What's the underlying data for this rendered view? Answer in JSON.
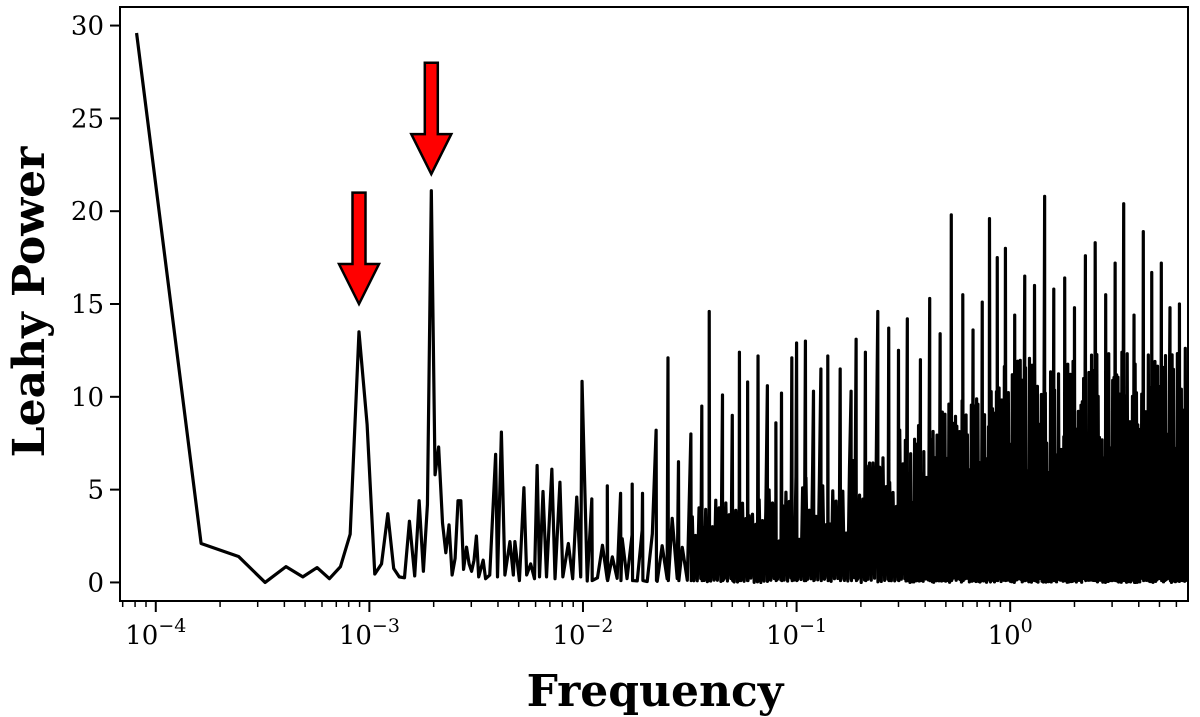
{
  "chart_data": {
    "type": "line",
    "title": "",
    "xlabel": "Frequency",
    "ylabel": "Leahy Power",
    "xscale": "log",
    "xlim": [
      6.8e-05,
      6.8
    ],
    "ylim": [
      -1,
      31
    ],
    "grid": false,
    "x_ticks": [
      {
        "value": 0.0001,
        "base": "10",
        "exp": "−4"
      },
      {
        "value": 0.001,
        "base": "10",
        "exp": "−3"
      },
      {
        "value": 0.01,
        "base": "10",
        "exp": "−2"
      },
      {
        "value": 0.1,
        "base": "10",
        "exp": "−1"
      },
      {
        "value": 1,
        "base": "10",
        "exp": "0"
      }
    ],
    "y_ticks": [
      {
        "value": 0,
        "label": "0"
      },
      {
        "value": 5,
        "label": "5"
      },
      {
        "value": 10,
        "label": "10"
      },
      {
        "value": 15,
        "label": "15"
      },
      {
        "value": 20,
        "label": "20"
      },
      {
        "value": 25,
        "label": "25"
      },
      {
        "value": 30,
        "label": "30"
      }
    ],
    "series": [
      {
        "color": "#000000",
        "values_low_freq": [
          [
            8.13e-05,
            29.6
          ],
          [
            0.000163,
            2.1
          ],
          [
            0.000244,
            1.4
          ],
          [
            0.000325,
            0.0
          ],
          [
            0.000407,
            0.85
          ],
          [
            0.000488,
            0.3
          ],
          [
            0.000569,
            0.8
          ],
          [
            0.00065,
            0.2
          ],
          [
            0.000732,
            0.85
          ],
          [
            0.000813,
            2.6
          ],
          [
            0.000894,
            13.5
          ],
          [
            0.000976,
            8.5
          ],
          [
            0.00106,
            0.45
          ],
          [
            0.00114,
            1.0
          ],
          [
            0.00122,
            3.7
          ],
          [
            0.0013,
            0.75
          ],
          [
            0.00138,
            0.3
          ],
          [
            0.00146,
            0.25
          ],
          [
            0.00154,
            3.3
          ],
          [
            0.00163,
            0.35
          ],
          [
            0.00171,
            4.4
          ],
          [
            0.00179,
            0.6
          ],
          [
            0.00187,
            4.2
          ],
          [
            0.00195,
            21.1
          ],
          [
            0.00203,
            5.8
          ],
          [
            0.00211,
            7.3
          ],
          [
            0.0022,
            3.2
          ],
          [
            0.00228,
            1.6
          ],
          [
            0.00236,
            3.1
          ],
          [
            0.00244,
            0.4
          ],
          [
            0.00252,
            1.3
          ],
          [
            0.0026,
            4.4
          ],
          [
            0.00268,
            4.4
          ],
          [
            0.00276,
            0.7
          ],
          [
            0.00285,
            1.9
          ],
          [
            0.00293,
            1.0
          ],
          [
            0.00301,
            0.6
          ],
          [
            0.00309,
            1.2
          ],
          [
            0.00317,
            2.5
          ],
          [
            0.00325,
            0.3
          ],
          [
            0.00341,
            1.2
          ],
          [
            0.0035,
            0.2
          ],
          [
            0.00366,
            0.4
          ],
          [
            0.0039,
            6.9
          ],
          [
            0.00398,
            0.3
          ],
          [
            0.00415,
            8.1
          ],
          [
            0.00431,
            0.4
          ],
          [
            0.00455,
            2.2
          ],
          [
            0.00472,
            0.4
          ],
          [
            0.0048,
            2.2
          ],
          [
            0.00504,
            0.1
          ],
          [
            0.00529,
            5.1
          ],
          [
            0.00545,
            0.4
          ],
          [
            0.00569,
            1.0
          ],
          [
            0.00593,
            0.2
          ],
          [
            0.0061,
            6.3
          ],
          [
            0.00626,
            0.3
          ],
          [
            0.0065,
            4.9
          ],
          [
            0.00675,
            0.3
          ],
          [
            0.00715,
            6.1
          ],
          [
            0.0074,
            0.2
          ],
          [
            0.0078,
            5.4
          ],
          [
            0.00805,
            0.3
          ],
          [
            0.00854,
            2.1
          ],
          [
            0.00895,
            0.2
          ],
          [
            0.00935,
            4.6
          ],
          [
            0.00976,
            0.3
          ]
        ],
        "peaks_high_freq": [
          [
            0.011,
            4.5
          ],
          [
            0.013,
            5.2
          ],
          [
            0.015,
            4.8
          ],
          [
            0.017,
            5.3
          ],
          [
            0.019,
            4.8
          ],
          [
            0.022,
            8.2
          ],
          [
            0.025,
            12.1
          ],
          [
            0.028,
            6.5
          ],
          [
            0.032,
            8.0
          ],
          [
            0.036,
            9.5
          ],
          [
            0.039,
            14.6
          ],
          [
            0.045,
            10.1
          ],
          [
            0.05,
            9.0
          ],
          [
            0.054,
            12.4
          ],
          [
            0.059,
            10.8
          ],
          [
            0.066,
            12.2
          ],
          [
            0.073,
            10.6
          ],
          [
            0.08,
            8.6
          ],
          [
            0.085,
            10.2
          ],
          [
            0.095,
            12.1
          ],
          [
            0.1,
            12.9
          ],
          [
            0.11,
            13.0
          ],
          [
            0.12,
            10.3
          ],
          [
            0.13,
            11.5
          ],
          [
            0.14,
            12.2
          ],
          [
            0.16,
            11.5
          ],
          [
            0.18,
            10.3
          ],
          [
            0.19,
            13.1
          ],
          [
            0.21,
            12.4
          ],
          [
            0.24,
            14.6
          ],
          [
            0.27,
            13.7
          ],
          [
            0.3,
            12.5
          ],
          [
            0.33,
            14.2
          ],
          [
            0.38,
            12.0
          ],
          [
            0.42,
            15.3
          ],
          [
            0.47,
            13.4
          ],
          [
            0.53,
            19.8
          ],
          [
            0.6,
            15.5
          ],
          [
            0.67,
            13.6
          ],
          [
            0.74,
            15.1
          ],
          [
            0.8,
            19.6
          ],
          [
            0.87,
            17.5
          ],
          [
            0.95,
            18.0
          ],
          [
            1.05,
            14.4
          ],
          [
            1.17,
            16.5
          ],
          [
            1.3,
            16.0
          ],
          [
            1.45,
            20.8
          ],
          [
            1.6,
            15.8
          ],
          [
            1.8,
            16.4
          ],
          [
            2.0,
            14.8
          ],
          [
            2.25,
            17.6
          ],
          [
            2.5,
            18.3
          ],
          [
            2.8,
            15.5
          ],
          [
            3.1,
            17.2
          ],
          [
            3.4,
            20.4
          ],
          [
            3.8,
            14.4
          ],
          [
            4.2,
            18.9
          ],
          [
            4.6,
            16.7
          ],
          [
            5.1,
            17.2
          ],
          [
            5.6,
            14.8
          ],
          [
            6.2,
            15.0
          ]
        ],
        "noise_floor": 0,
        "noise_envelope": [
          [
            0.01,
            2.0
          ],
          [
            0.1,
            6.0
          ],
          [
            0.42,
            9.0
          ],
          [
            1.0,
            12.0
          ],
          [
            6.7,
            13.0
          ]
        ]
      }
    ],
    "annotations": [
      {
        "type": "arrow",
        "color": "#ff0000",
        "x": 0.000894,
        "y_top": 21,
        "y_tip": 15,
        "points_to_value": 13.5
      },
      {
        "type": "arrow",
        "color": "#ff0000",
        "x": 0.00195,
        "y_top": 28,
        "y_tip": 22,
        "points_to_value": 21.1
      }
    ]
  }
}
